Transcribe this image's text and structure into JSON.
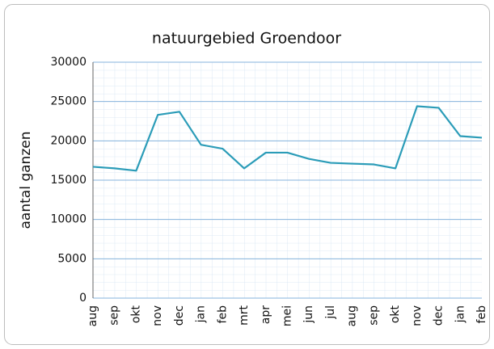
{
  "chart_data": {
    "type": "line",
    "title": "natuurgebied Groendoor",
    "y_label": "aantal ganzen",
    "categories": [
      "aug",
      "sep",
      "okt",
      "nov",
      "dec",
      "jan",
      "feb",
      "mrt",
      "apr",
      "mei",
      "jun",
      "jul",
      "aug",
      "sep",
      "okt",
      "nov",
      "dec",
      "jan",
      "feb"
    ],
    "series": [
      {
        "name": "aantal ganzen",
        "color": "#2b9cb8",
        "values": [
          16700,
          16500,
          16200,
          23300,
          23700,
          19500,
          19000,
          16500,
          18500,
          18500,
          17700,
          17200,
          17100,
          17000,
          16500,
          24400,
          24200,
          20600,
          20400
        ]
      }
    ],
    "ylim": [
      0,
      30000
    ],
    "yticks": [
      0,
      5000,
      10000,
      15000,
      20000,
      25000,
      30000
    ],
    "grid": true
  }
}
